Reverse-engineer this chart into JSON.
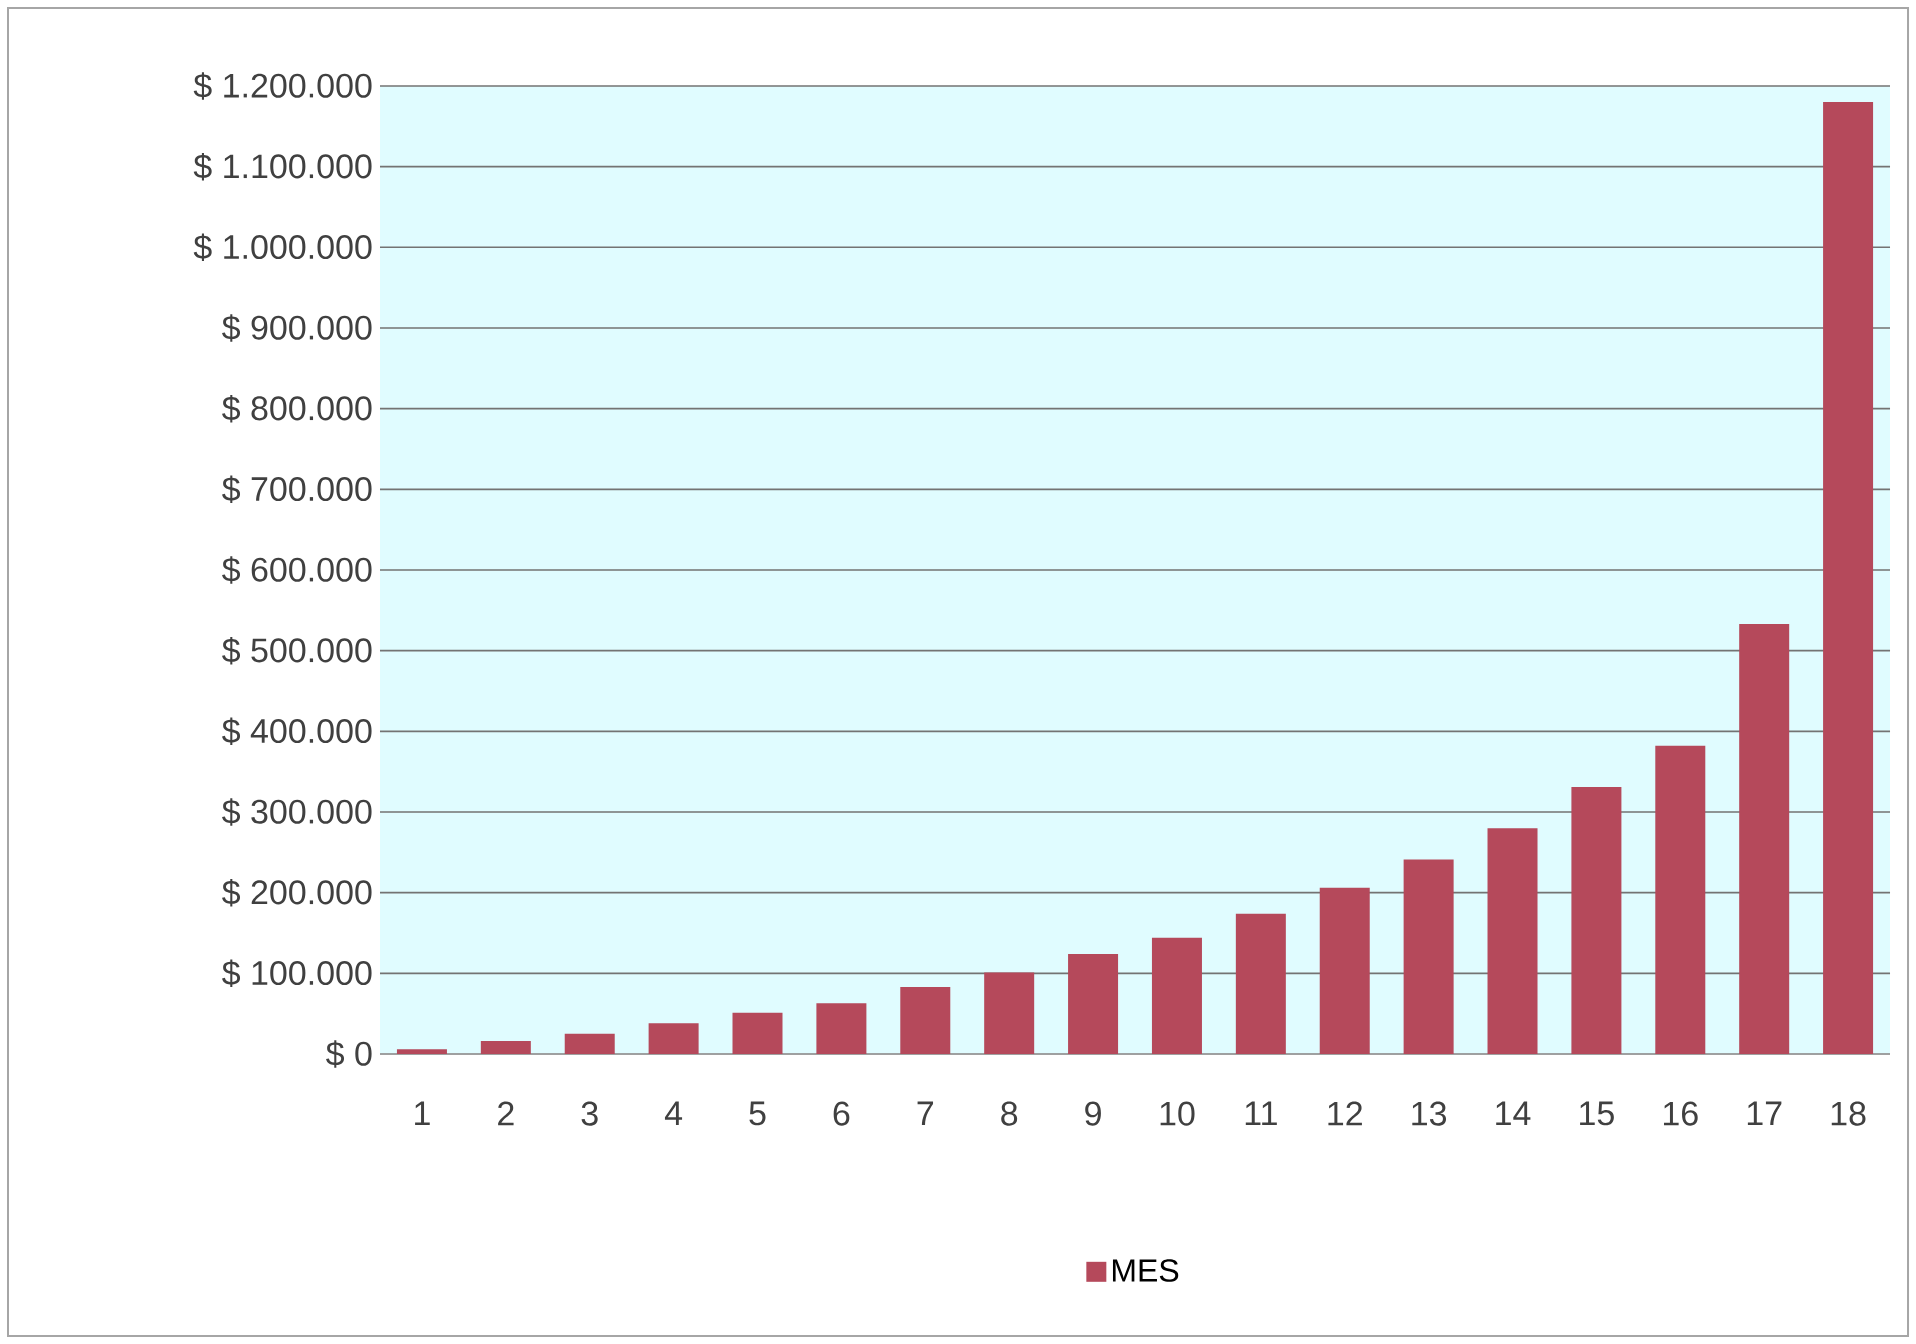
{
  "chart_data": {
    "type": "bar",
    "categories": [
      "1",
      "2",
      "3",
      "4",
      "5",
      "6",
      "7",
      "8",
      "9",
      "10",
      "11",
      "12",
      "13",
      "14",
      "15",
      "16",
      "17",
      "18"
    ],
    "series": [
      {
        "name": "MES",
        "color": "#b5495b",
        "values": [
          6000,
          16000,
          25000,
          38000,
          51000,
          63000,
          83000,
          101000,
          124000,
          144000,
          174000,
          206000,
          241000,
          280000,
          331000,
          382000,
          533000,
          1180000
        ]
      }
    ],
    "ylim": [
      0,
      1200000
    ],
    "yticks": [
      {
        "value": 0,
        "label": "$ 0"
      },
      {
        "value": 100000,
        "label": "$ 100.000"
      },
      {
        "value": 200000,
        "label": "$ 200.000"
      },
      {
        "value": 300000,
        "label": "$ 300.000"
      },
      {
        "value": 400000,
        "label": "$ 400.000"
      },
      {
        "value": 500000,
        "label": "$ 500.000"
      },
      {
        "value": 600000,
        "label": "$ 600.000"
      },
      {
        "value": 700000,
        "label": "$ 700.000"
      },
      {
        "value": 800000,
        "label": "$ 800.000"
      },
      {
        "value": 900000,
        "label": "$ 900.000"
      },
      {
        "value": 1000000,
        "label": "$ 1.000.000"
      },
      {
        "value": 1100000,
        "label": "$ 1.100.000"
      },
      {
        "value": 1200000,
        "label": "$ 1.200.000"
      }
    ],
    "grid": "y",
    "legend": "bottom"
  }
}
